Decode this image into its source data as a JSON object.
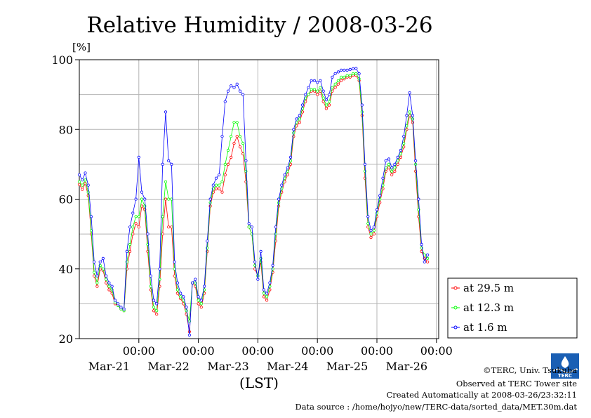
{
  "chart_data": {
    "type": "line",
    "title": "Relative Humidity / 2008-03-26",
    "ylabel": "[%]",
    "xlabel": "(LST)",
    "ylim": [
      20,
      100
    ],
    "yticks": [
      20,
      40,
      60,
      80,
      100
    ],
    "x_range_days": [
      0,
      6
    ],
    "x_ticks": [
      {
        "time": "00:00",
        "date": "Mar-21"
      },
      {
        "time": "00:00",
        "date": "Mar-22"
      },
      {
        "time": "00:00",
        "date": "Mar-23"
      },
      {
        "time": "00:00",
        "date": "Mar-24"
      },
      {
        "time": "00:00",
        "date": "Mar-25"
      },
      {
        "time": "00:00",
        "date": "Mar-26"
      }
    ],
    "grid": true,
    "legend_position": "bottom-right",
    "series": [
      {
        "name": "at 29.5 m",
        "color": "#ff0000",
        "x": [
          0,
          0.05,
          0.1,
          0.15,
          0.2,
          0.25,
          0.3,
          0.35,
          0.4,
          0.45,
          0.5,
          0.55,
          0.6,
          0.65,
          0.7,
          0.75,
          0.8,
          0.85,
          0.9,
          0.95,
          1.0,
          1.05,
          1.1,
          1.15,
          1.2,
          1.25,
          1.3,
          1.35,
          1.4,
          1.45,
          1.5,
          1.55,
          1.6,
          1.65,
          1.7,
          1.75,
          1.8,
          1.85,
          1.9,
          1.95,
          2.0,
          2.05,
          2.1,
          2.15,
          2.2,
          2.25,
          2.3,
          2.35,
          2.4,
          2.45,
          2.5,
          2.55,
          2.6,
          2.65,
          2.7,
          2.75,
          2.8,
          2.85,
          2.9,
          2.95,
          3.0,
          3.05,
          3.1,
          3.15,
          3.2,
          3.25,
          3.3,
          3.35,
          3.4,
          3.45,
          3.5,
          3.55,
          3.6,
          3.65,
          3.7,
          3.75,
          3.8,
          3.85,
          3.9,
          3.95,
          4.0,
          4.05,
          4.1,
          4.15,
          4.2,
          4.25,
          4.3,
          4.35,
          4.4,
          4.45,
          4.5,
          4.55,
          4.6,
          4.65,
          4.7,
          4.75,
          4.8,
          4.85,
          4.9,
          4.95,
          5.0,
          5.05,
          5.1,
          5.15,
          5.2,
          5.25,
          5.3,
          5.35,
          5.4,
          5.45,
          5.5,
          5.55,
          5.6,
          5.65,
          5.7,
          5.75,
          5.8,
          5.85
        ],
        "values": [
          64.2,
          62.8,
          64.5,
          61.0,
          50.0,
          38.0,
          35.0,
          40.0,
          39.5,
          36.0,
          34.0,
          33.0,
          30.0,
          29.5,
          28.5,
          28.0,
          40.0,
          45.0,
          50.0,
          53.0,
          52.0,
          58.0,
          57.0,
          45.0,
          34.0,
          28.0,
          27.0,
          35.0,
          50.0,
          60.0,
          52.0,
          52.0,
          38.0,
          33.0,
          31.5,
          30.0,
          27.0,
          22.0,
          36.0,
          35.0,
          30.0,
          29.0,
          33.0,
          45.0,
          58.0,
          62.0,
          63.0,
          63.0,
          62.0,
          67.0,
          70.0,
          72.0,
          76.0,
          78.0,
          75.0,
          73.0,
          65.0,
          52.0,
          50.0,
          40.0,
          38.0,
          42.0,
          32.0,
          31.0,
          34.0,
          39.0,
          48.0,
          58.0,
          62.0,
          65.0,
          67.0,
          70.0,
          78.0,
          81.0,
          82.0,
          85.0,
          88.0,
          90.0,
          91.0,
          91.0,
          90.0,
          91.0,
          88.0,
          86.0,
          87.0,
          91.0,
          92.0,
          93.0,
          94.0,
          94.5,
          95.0,
          95.0,
          95.5,
          95.5,
          94.0,
          84.0,
          66.0,
          52.0,
          49.0,
          50.0,
          55.0,
          59.0,
          63.0,
          68.0,
          69.0,
          67.0,
          68.0,
          70.0,
          72.0,
          75.0,
          80.0,
          84.0,
          82.0,
          68.0,
          55.0,
          45.0,
          43.0,
          42.0
        ]
      },
      {
        "name": "at 12.3 m",
        "color": "#00ff00",
        "x": [
          0,
          0.05,
          0.1,
          0.15,
          0.2,
          0.25,
          0.3,
          0.35,
          0.4,
          0.45,
          0.5,
          0.55,
          0.6,
          0.65,
          0.7,
          0.75,
          0.8,
          0.85,
          0.9,
          0.95,
          1.0,
          1.05,
          1.1,
          1.15,
          1.2,
          1.25,
          1.3,
          1.35,
          1.4,
          1.45,
          1.5,
          1.55,
          1.6,
          1.65,
          1.7,
          1.75,
          1.8,
          1.85,
          1.9,
          1.95,
          2.0,
          2.05,
          2.1,
          2.15,
          2.2,
          2.25,
          2.3,
          2.35,
          2.4,
          2.45,
          2.5,
          2.55,
          2.6,
          2.65,
          2.7,
          2.75,
          2.8,
          2.85,
          2.9,
          2.95,
          3.0,
          3.05,
          3.1,
          3.15,
          3.2,
          3.25,
          3.3,
          3.35,
          3.4,
          3.45,
          3.5,
          3.55,
          3.6,
          3.65,
          3.7,
          3.75,
          3.8,
          3.85,
          3.9,
          3.95,
          4.0,
          4.05,
          4.1,
          4.15,
          4.2,
          4.25,
          4.3,
          4.35,
          4.4,
          4.45,
          4.5,
          4.55,
          4.6,
          4.65,
          4.7,
          4.75,
          4.8,
          4.85,
          4.9,
          4.95,
          5.0,
          5.05,
          5.1,
          5.15,
          5.2,
          5.25,
          5.3,
          5.35,
          5.4,
          5.45,
          5.5,
          5.55,
          5.6,
          5.65,
          5.7,
          5.75,
          5.8,
          5.85
        ],
        "values": [
          65.0,
          64.0,
          65.5,
          62.0,
          51.0,
          39.0,
          36.0,
          41.0,
          40.0,
          37.0,
          35.0,
          34.0,
          30.5,
          29.5,
          28.5,
          28.0,
          42.0,
          47.0,
          52.0,
          55.0,
          55.0,
          60.0,
          58.0,
          47.0,
          35.0,
          29.0,
          28.0,
          37.0,
          55.0,
          65.0,
          60.0,
          60.0,
          40.0,
          34.0,
          32.0,
          31.0,
          28.0,
          25.0,
          36.0,
          36.0,
          31.0,
          30.0,
          34.0,
          46.0,
          59.0,
          63.0,
          64.0,
          64.0,
          65.0,
          70.0,
          74.0,
          78.0,
          82.0,
          82.0,
          78.0,
          76.0,
          68.0,
          52.0,
          50.0,
          41.0,
          38.0,
          43.0,
          33.0,
          32.0,
          35.0,
          40.0,
          50.0,
          59.0,
          63.0,
          66.0,
          68.0,
          71.0,
          79.0,
          82.0,
          83.0,
          86.0,
          89.0,
          90.0,
          91.5,
          91.5,
          91.0,
          92.0,
          89.0,
          87.0,
          88.0,
          92.0,
          93.0,
          94.0,
          95.0,
          95.0,
          95.5,
          95.5,
          96.0,
          96.0,
          94.5,
          85.0,
          68.0,
          53.0,
          50.0,
          51.0,
          56.0,
          60.0,
          64.0,
          69.0,
          70.0,
          68.0,
          69.0,
          71.0,
          73.0,
          76.0,
          81.0,
          85.0,
          83.0,
          70.0,
          57.0,
          46.0,
          44.0,
          43.0
        ]
      },
      {
        "name": "at 1.6 m",
        "color": "#0000ff",
        "x": [
          0,
          0.05,
          0.1,
          0.15,
          0.2,
          0.25,
          0.3,
          0.35,
          0.4,
          0.45,
          0.5,
          0.55,
          0.6,
          0.65,
          0.7,
          0.75,
          0.8,
          0.85,
          0.9,
          0.95,
          1.0,
          1.05,
          1.1,
          1.15,
          1.2,
          1.25,
          1.3,
          1.35,
          1.4,
          1.45,
          1.5,
          1.55,
          1.6,
          1.65,
          1.7,
          1.75,
          1.8,
          1.85,
          1.9,
          1.95,
          2.0,
          2.05,
          2.1,
          2.15,
          2.2,
          2.25,
          2.3,
          2.35,
          2.4,
          2.45,
          2.5,
          2.55,
          2.6,
          2.65,
          2.7,
          2.75,
          2.8,
          2.85,
          2.9,
          2.95,
          3.0,
          3.05,
          3.1,
          3.15,
          3.2,
          3.25,
          3.3,
          3.35,
          3.4,
          3.45,
          3.5,
          3.55,
          3.6,
          3.65,
          3.7,
          3.75,
          3.8,
          3.85,
          3.9,
          3.95,
          4.0,
          4.05,
          4.1,
          4.15,
          4.2,
          4.25,
          4.3,
          4.35,
          4.4,
          4.45,
          4.5,
          4.55,
          4.6,
          4.65,
          4.7,
          4.75,
          4.8,
          4.85,
          4.9,
          4.95,
          5.0,
          5.05,
          5.1,
          5.15,
          5.2,
          5.25,
          5.3,
          5.35,
          5.4,
          5.45,
          5.5,
          5.55,
          5.6,
          5.65,
          5.7,
          5.75,
          5.8,
          5.85
        ],
        "values": [
          67.0,
          65.5,
          67.5,
          64.0,
          55.0,
          42.0,
          38.0,
          42.0,
          43.0,
          38.0,
          36.0,
          35.0,
          31.0,
          30.0,
          29.0,
          28.5,
          45.0,
          52.0,
          56.0,
          60.0,
          72.0,
          62.0,
          60.0,
          50.0,
          38.0,
          31.0,
          30.0,
          40.0,
          70.0,
          85.0,
          71.0,
          70.0,
          42.0,
          36.0,
          33.0,
          32.0,
          29.0,
          21.0,
          36.0,
          37.0,
          32.0,
          31.0,
          35.0,
          48.0,
          60.0,
          64.0,
          66.0,
          67.0,
          78.0,
          88.0,
          91.0,
          92.5,
          92.0,
          93.0,
          91.0,
          90.0,
          71.0,
          53.0,
          52.0,
          42.0,
          37.0,
          45.0,
          34.0,
          33.0,
          36.0,
          41.0,
          52.0,
          60.0,
          64.0,
          67.0,
          69.0,
          72.0,
          80.0,
          83.0,
          84.0,
          87.0,
          90.0,
          92.0,
          94.0,
          94.0,
          93.5,
          94.0,
          91.0,
          88.5,
          90.0,
          95.0,
          96.0,
          96.5,
          97.0,
          97.0,
          97.0,
          97.2,
          97.4,
          97.5,
          96.0,
          87.0,
          70.0,
          55.0,
          51.0,
          52.0,
          57.0,
          61.0,
          66.0,
          71.0,
          71.5,
          69.0,
          70.0,
          72.0,
          74.0,
          78.0,
          84.0,
          90.5,
          84.0,
          71.0,
          60.0,
          47.0,
          42.0,
          44.0
        ]
      }
    ]
  },
  "legend": {
    "items": [
      {
        "label": "at 29.5 m",
        "color": "#ff0000"
      },
      {
        "label": "at 12.3 m",
        "color": "#00ff00"
      },
      {
        "label": "at 1.6 m",
        "color": "#0000ff"
      }
    ]
  },
  "footer": {
    "copyright": "©TERC, Univ. Tsukuba",
    "observed": "Observed at TERC Tower site",
    "created": "Created Automatically at 2008-03-26/23:32:11",
    "source": "Data source : /home/hojyo/new/TERC-data/sorted_data/MET.30m.dat",
    "logo_text": "TERC"
  }
}
